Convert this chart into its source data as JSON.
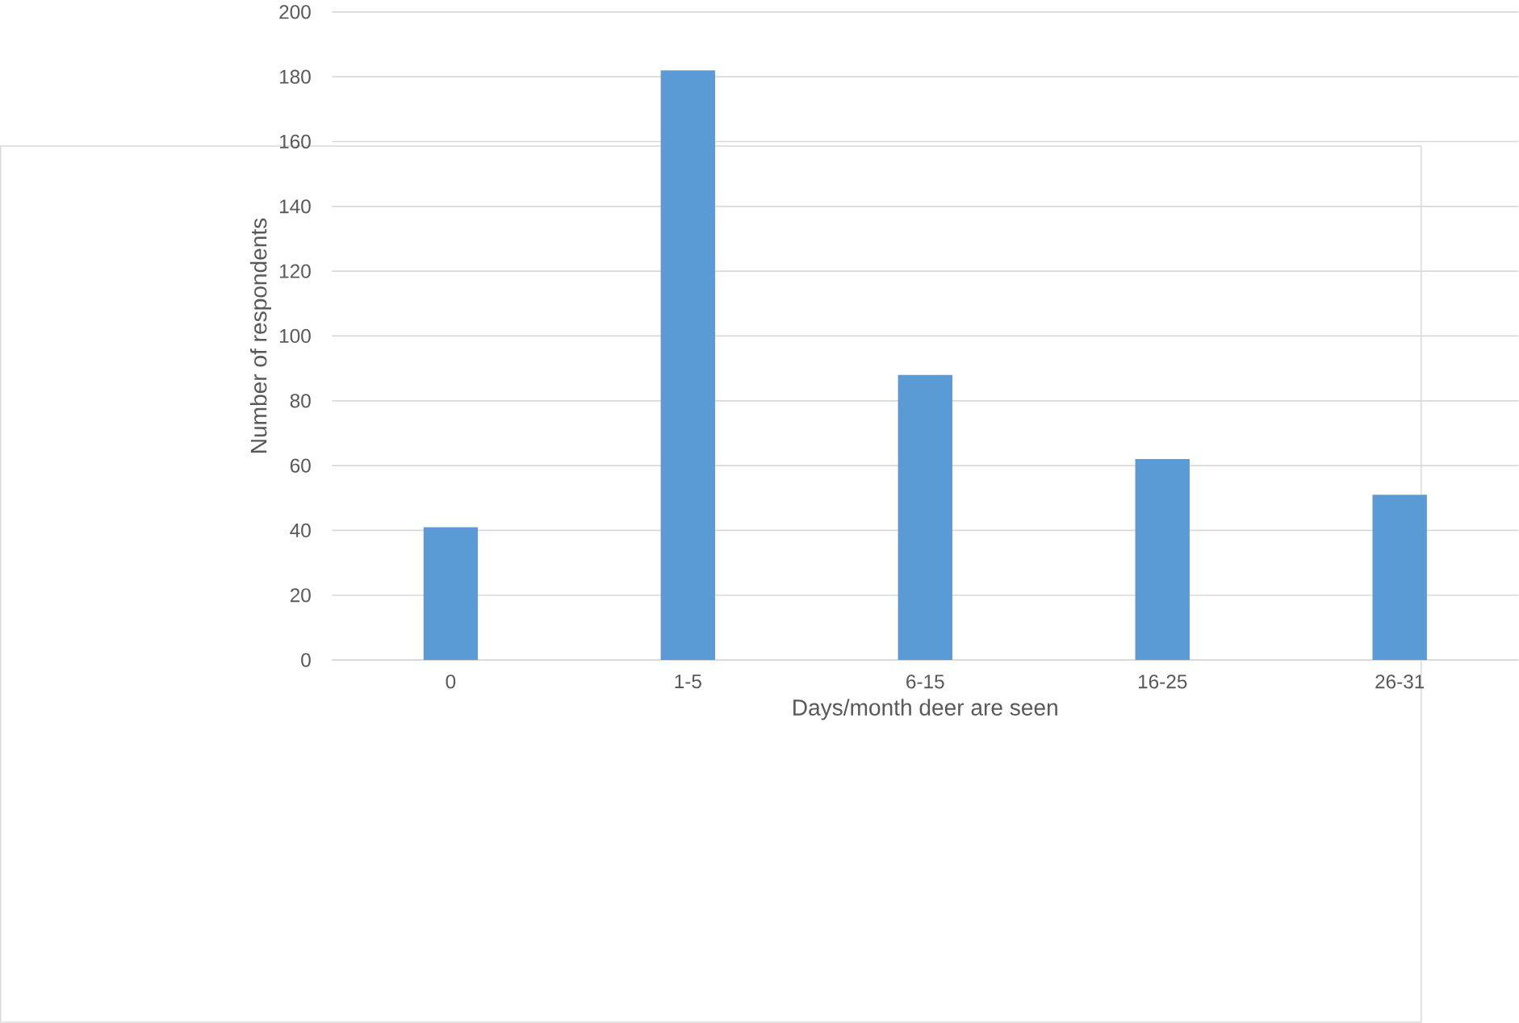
{
  "chart_data": {
    "type": "bar",
    "xlabel": "Days/month deer are seen",
    "ylabel": "Number of respondents",
    "categories": [
      "0",
      "1-5",
      "6-15",
      "16-25",
      "26-31"
    ],
    "values": [
      41,
      182,
      88,
      62,
      51
    ],
    "color": "#5b9bd5",
    "ylim": [
      0,
      200
    ],
    "yticks": [
      0,
      20,
      40,
      60,
      80,
      100,
      120,
      140,
      160,
      180,
      200
    ],
    "grid": "y"
  }
}
